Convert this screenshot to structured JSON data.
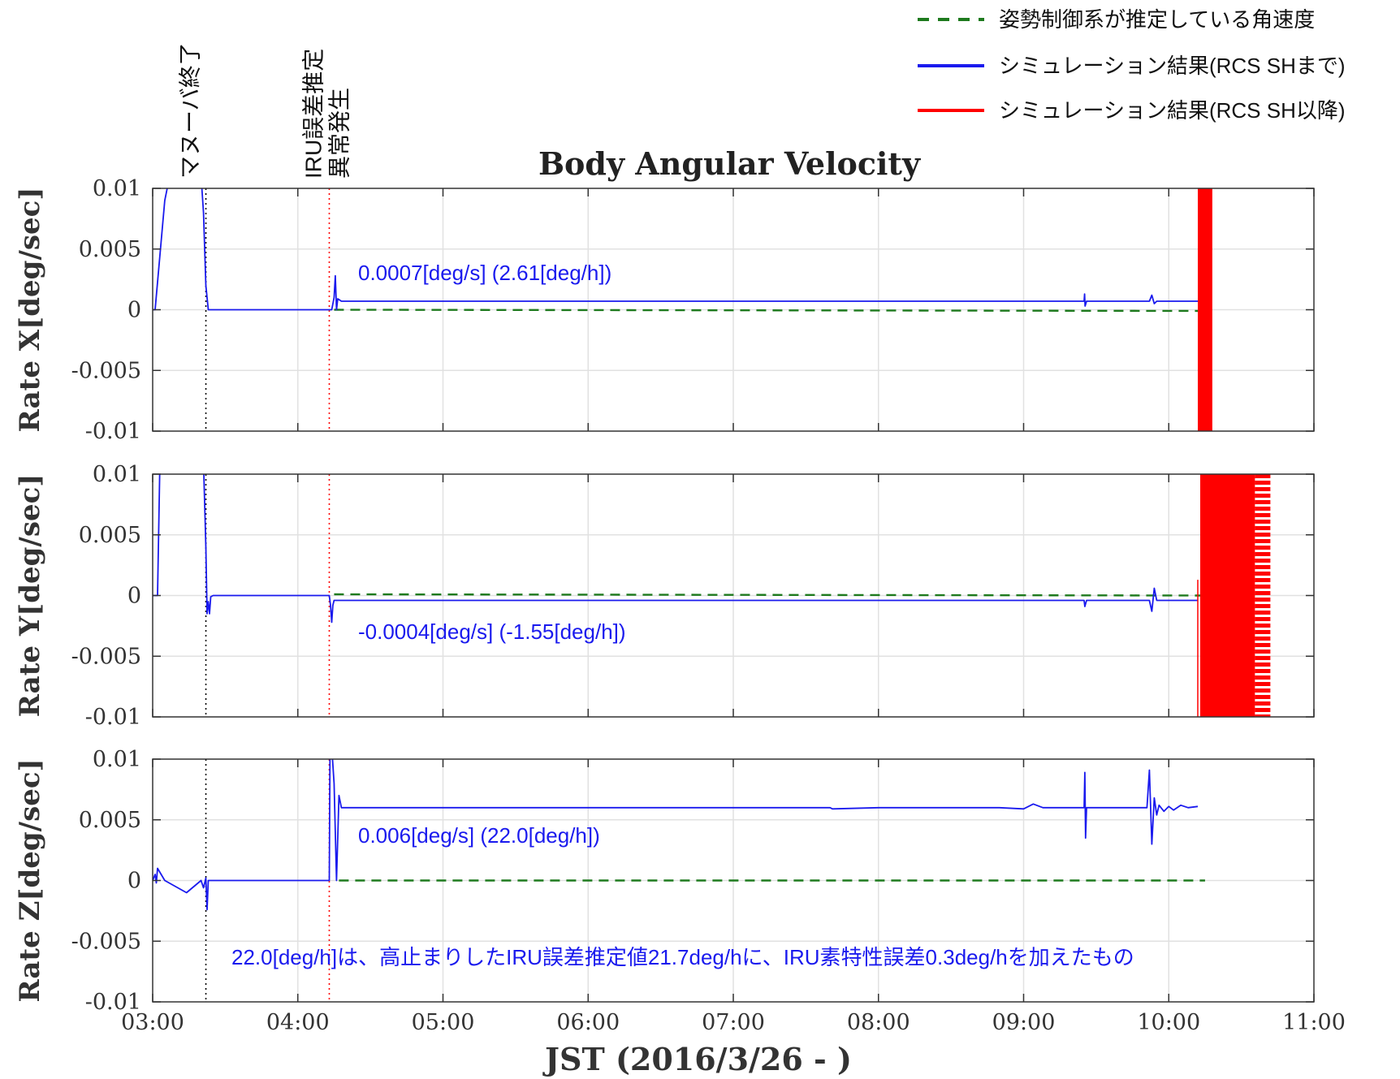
{
  "chart_data": {
    "type": "line",
    "title": "Body Angular Velocity",
    "xlabel": "JST (2016/3/26 - )",
    "x_unit": "time (JST, HH:MM)",
    "xlim": [
      "03:00",
      "11:00"
    ],
    "x_ticks": [
      "03:00",
      "04:00",
      "05:00",
      "06:00",
      "07:00",
      "08:00",
      "09:00",
      "10:00",
      "11:00"
    ],
    "y_ticks": [
      "0.01",
      "0.005",
      "0",
      "-0.005",
      "-0.01"
    ],
    "ylim": [
      -0.01,
      0.01
    ],
    "grid": true,
    "legend_position": "top-right",
    "legend": [
      {
        "label": "姿勢制御系が推定している角速度",
        "style": "dashed",
        "color": "#1e7a1e"
      },
      {
        "label": "シミュレーション結果(RCS SHまで)",
        "style": "solid",
        "color": "#1a1aee"
      },
      {
        "label": "シミュレーション結果(RCS SH以降)",
        "style": "solid",
        "color": "#ff0000"
      }
    ],
    "events": [
      {
        "time": "03:22",
        "label": "マヌーバ終了",
        "color": "#000000"
      },
      {
        "time": "04:13",
        "label": [
          "IRU誤差推定",
          "異常発生"
        ],
        "color": "#ff0000"
      }
    ],
    "colors": {
      "estimated": "#1e7a1e",
      "sim_before": "#1a1aee",
      "sim_after": "#ff0000"
    },
    "panels": [
      {
        "ylabel": "Rate X[deg/sec]",
        "annotation": "0.0007[deg/s]  (2.61[deg/h])",
        "estimated": {
          "x": [
            "04:15",
            "10:13"
          ],
          "y": [
            0.0,
            -0.0001
          ]
        },
        "sim_before": {
          "x": [
            "03:00",
            "03:01",
            "03:05",
            "03:07",
            "03:08",
            "03:20",
            "03:21",
            "03:22",
            "03:23",
            "03:40",
            "04:13",
            "04:14",
            "04:15",
            "04:15.5",
            "04:16",
            "04:16.5",
            "04:18",
            "05:00",
            "06:00",
            "07:00",
            "08:00",
            "09:00",
            "09:25",
            "09:25.2",
            "09:25.4",
            "09:26",
            "09:52",
            "09:53",
            "09:54",
            "09:55",
            "10:12"
          ],
          "y": [
            0,
            0,
            0.009,
            0.011,
            0.011,
            0.011,
            0.008,
            0.002,
            0.0,
            0.0,
            0.0,
            0.0,
            0.001,
            0.0028,
            0.0,
            0.0009,
            0.0007,
            0.0007,
            0.0007,
            0.0007,
            0.0007,
            0.0007,
            0.0007,
            0.0013,
            0.0003,
            0.0007,
            0.0007,
            0.0012,
            0.0005,
            0.0007,
            0.0007
          ]
        },
        "sim_after": {
          "x_range": [
            "10:12",
            "10:18"
          ],
          "y_range": [
            -0.01,
            0.01
          ],
          "pattern": "solid"
        }
      },
      {
        "ylabel": "Rate Y[deg/sec]",
        "annotation": "-0.0004[deg/s] (-1.55[deg/h])",
        "estimated": {
          "x": [
            "04:15",
            "10:13"
          ],
          "y": [
            0.0001,
            0.0
          ]
        },
        "sim_before": {
          "x": [
            "03:00",
            "03:01",
            "03:02",
            "03:03",
            "03:04",
            "03:20",
            "03:21",
            "03:22",
            "03:22.5",
            "03:23",
            "03:23.5",
            "03:24",
            "03:25",
            "04:13",
            "04:13.5",
            "04:14",
            "04:14.5",
            "04:15",
            "04:17",
            "05:00",
            "06:00",
            "07:00",
            "08:00",
            "09:00",
            "09:25",
            "09:25.3",
            "09:26",
            "09:52",
            "09:53",
            "09:54",
            "09:55",
            "10:12"
          ],
          "y": [
            0,
            0,
            0,
            0.011,
            0.011,
            0.011,
            0.011,
            0.004,
            -0.0015,
            -0.0005,
            -0.0015,
            -0.0001,
            0.0,
            0.0,
            -0.0008,
            -0.0022,
            -0.0008,
            -0.0004,
            -0.0004,
            -0.0004,
            -0.0004,
            -0.0004,
            -0.0004,
            -0.0004,
            -0.0004,
            -0.0009,
            -0.0004,
            -0.0004,
            -0.0013,
            0.0006,
            -0.0004,
            -0.0004
          ]
        },
        "sim_after": {
          "x_range": [
            "10:13",
            "10:42"
          ],
          "y_range": [
            -0.01,
            0.01
          ],
          "pattern": "solid-then-striped"
        }
      },
      {
        "ylabel": "Rate Z[deg/sec]",
        "annotation": "0.006[deg/s] (22.0[deg/h])",
        "note": "22.0[deg/h]は、高止まりしたIRU誤差推定値21.7deg/hに、IRU素特性誤差0.3deg/hを加えたもの",
        "estimated": {
          "x": [
            "04:17",
            "10:15"
          ],
          "y": [
            0.0,
            0.0
          ]
        },
        "sim_before": {
          "x": [
            "03:00",
            "03:01",
            "03:01.5",
            "03:02",
            "03:05",
            "03:14",
            "03:20",
            "03:21",
            "03:22",
            "03:22.5",
            "03:23",
            "03:30",
            "04:13",
            "04:13.3",
            "04:14",
            "04:15",
            "04:15.5",
            "04:16",
            "04:17",
            "04:18",
            "05:00",
            "06:00",
            "07:00",
            "07:40",
            "07:41",
            "08:00",
            "08:30",
            "08:50",
            "09:00",
            "09:04",
            "09:08",
            "09:20",
            "09:25",
            "09:25.3",
            "09:25.6",
            "09:26",
            "09:51",
            "09:52",
            "09:53",
            "09:54",
            "09:55",
            "09:56",
            "09:58",
            "10:00",
            "10:02",
            "10:05",
            "10:08",
            "10:12"
          ],
          "y": [
            0,
            0.0005,
            -0.0002,
            0.001,
            0.0,
            -0.001,
            0.0,
            -0.0006,
            0.0002,
            -0.0024,
            0.0,
            0.0,
            0.0,
            0.011,
            0.011,
            0.008,
            0.004,
            0.0,
            0.007,
            0.006,
            0.006,
            0.006,
            0.006,
            0.006,
            0.0059,
            0.006,
            0.006,
            0.006,
            0.0059,
            0.0063,
            0.006,
            0.006,
            0.006,
            0.0089,
            0.0035,
            0.006,
            0.006,
            0.0091,
            0.003,
            0.0068,
            0.0054,
            0.0062,
            0.0057,
            0.0061,
            0.0058,
            0.0062,
            0.006,
            0.0061
          ]
        }
      }
    ]
  }
}
